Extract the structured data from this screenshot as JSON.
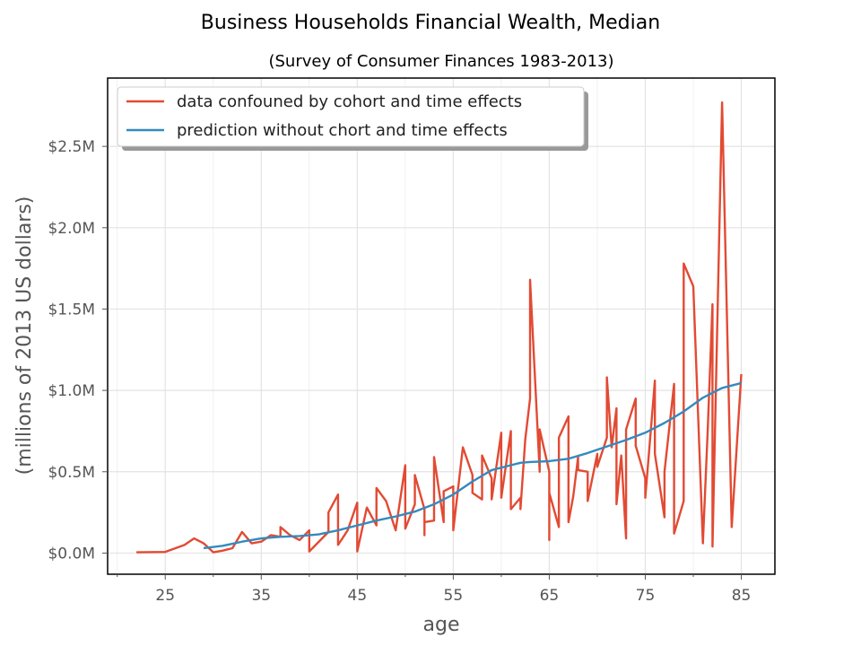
{
  "chart_data": {
    "type": "line",
    "title": "Business Households Financial Wealth, Median",
    "subtitle": "(Survey of Consumer Finances 1983-2013)",
    "xlabel": "age",
    "ylabel": "(millions of 2013 US dollars)",
    "xlim": [
      19,
      88.5
    ],
    "ylim": [
      -0.13,
      2.92
    ],
    "xticks": [
      25,
      35,
      45,
      55,
      65,
      75,
      85
    ],
    "xtick_labels": [
      "25",
      "35",
      "45",
      "55",
      "65",
      "75",
      "85"
    ],
    "yticks": [
      0.0,
      0.5,
      1.0,
      1.5,
      2.0,
      2.5
    ],
    "ytick_labels": [
      "$0.0M",
      "$0.5M",
      "$1.0M",
      "$1.5M",
      "$2.0M",
      "$2.5M"
    ],
    "grid": true,
    "legend_position": "top-left",
    "series": [
      {
        "name": "data confouned by cohort and time effects",
        "color": "#E24A33",
        "points": [
          [
            22,
            0.005
          ],
          [
            25,
            0.007
          ],
          [
            27,
            0.05
          ],
          [
            28,
            0.09
          ],
          [
            29,
            0.06
          ],
          [
            30,
            0.005
          ],
          [
            31,
            0.015
          ],
          [
            32,
            0.03
          ],
          [
            33,
            0.13
          ],
          [
            34,
            0.06
          ],
          [
            35,
            0.07
          ],
          [
            36,
            0.11
          ],
          [
            37,
            0.1
          ],
          [
            37,
            0.16
          ],
          [
            38,
            0.11
          ],
          [
            39,
            0.08
          ],
          [
            40,
            0.14
          ],
          [
            40,
            0.01
          ],
          [
            41,
            0.07
          ],
          [
            42,
            0.13
          ],
          [
            42,
            0.25
          ],
          [
            43,
            0.36
          ],
          [
            43,
            0.05
          ],
          [
            44,
            0.14
          ],
          [
            45,
            0.31
          ],
          [
            45,
            0.01
          ],
          [
            46,
            0.28
          ],
          [
            47,
            0.17
          ],
          [
            47,
            0.4
          ],
          [
            48,
            0.32
          ],
          [
            49,
            0.14
          ],
          [
            50,
            0.54
          ],
          [
            50,
            0.15
          ],
          [
            51,
            0.3
          ],
          [
            51,
            0.48
          ],
          [
            52,
            0.27
          ],
          [
            52,
            0.11
          ],
          [
            52,
            0.19
          ],
          [
            53,
            0.2
          ],
          [
            53,
            0.59
          ],
          [
            54,
            0.19
          ],
          [
            54,
            0.38
          ],
          [
            55,
            0.41
          ],
          [
            55,
            0.14
          ],
          [
            56,
            0.65
          ],
          [
            57,
            0.48
          ],
          [
            57,
            0.37
          ],
          [
            58,
            0.33
          ],
          [
            58,
            0.6
          ],
          [
            59,
            0.46
          ],
          [
            59,
            0.33
          ],
          [
            60,
            0.74
          ],
          [
            60,
            0.34
          ],
          [
            61,
            0.75
          ],
          [
            61,
            0.27
          ],
          [
            62,
            0.34
          ],
          [
            62,
            0.27
          ],
          [
            62.5,
            0.7
          ],
          [
            63,
            0.95
          ],
          [
            63,
            1.68
          ],
          [
            64,
            0.5
          ],
          [
            64,
            0.76
          ],
          [
            65,
            0.5
          ],
          [
            65,
            0.08
          ],
          [
            65,
            0.37
          ],
          [
            66,
            0.16
          ],
          [
            66,
            0.71
          ],
          [
            67,
            0.84
          ],
          [
            67,
            0.19
          ],
          [
            67.5,
            0.35
          ],
          [
            68,
            0.59
          ],
          [
            68,
            0.51
          ],
          [
            69,
            0.5
          ],
          [
            69,
            0.32
          ],
          [
            70,
            0.61
          ],
          [
            70,
            0.53
          ],
          [
            71,
            0.71
          ],
          [
            71,
            1.08
          ],
          [
            71.5,
            0.65
          ],
          [
            72,
            0.89
          ],
          [
            72,
            0.3
          ],
          [
            72.5,
            0.6
          ],
          [
            73,
            0.09
          ],
          [
            73,
            0.76
          ],
          [
            74,
            0.95
          ],
          [
            74,
            0.66
          ],
          [
            75,
            0.46
          ],
          [
            75,
            0.34
          ],
          [
            76,
            1.06
          ],
          [
            76,
            0.61
          ],
          [
            77,
            0.22
          ],
          [
            77,
            0.5
          ],
          [
            78,
            1.04
          ],
          [
            78,
            0.12
          ],
          [
            79,
            0.32
          ],
          [
            79,
            1.78
          ],
          [
            80,
            1.64
          ],
          [
            81,
            0.06
          ],
          [
            81.5,
            0.75
          ],
          [
            82,
            1.53
          ],
          [
            82,
            0.04
          ],
          [
            83,
            2.77
          ],
          [
            84,
            0.16
          ],
          [
            85,
            1.1
          ]
        ]
      },
      {
        "name": "prediction without chort and time effects",
        "color": "#348ABD",
        "points": [
          [
            29,
            0.03
          ],
          [
            31,
            0.045
          ],
          [
            33,
            0.07
          ],
          [
            35,
            0.09
          ],
          [
            37,
            0.1
          ],
          [
            39,
            0.105
          ],
          [
            41,
            0.115
          ],
          [
            43,
            0.14
          ],
          [
            45,
            0.17
          ],
          [
            47,
            0.2
          ],
          [
            49,
            0.225
          ],
          [
            51,
            0.255
          ],
          [
            53,
            0.3
          ],
          [
            55,
            0.36
          ],
          [
            57,
            0.44
          ],
          [
            59,
            0.51
          ],
          [
            61,
            0.54
          ],
          [
            62,
            0.555
          ],
          [
            63,
            0.56
          ],
          [
            65,
            0.565
          ],
          [
            67,
            0.58
          ],
          [
            69,
            0.615
          ],
          [
            71,
            0.655
          ],
          [
            73,
            0.695
          ],
          [
            75,
            0.74
          ],
          [
            77,
            0.8
          ],
          [
            79,
            0.87
          ],
          [
            81,
            0.955
          ],
          [
            83,
            1.015
          ],
          [
            85,
            1.045
          ]
        ]
      }
    ]
  }
}
